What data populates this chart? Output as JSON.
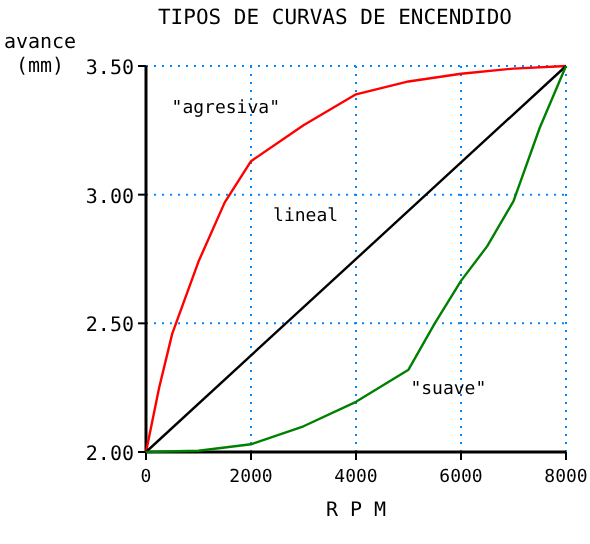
{
  "chart_data": {
    "type": "line",
    "title": "TIPOS DE CURVAS DE ENCENDIDO",
    "xlabel": "R P M",
    "ylabel": "avance (mm)",
    "xlim": [
      0,
      8000
    ],
    "ylim": [
      2,
      3.5
    ],
    "xticks": [
      0,
      2000,
      4000,
      6000,
      8000
    ],
    "yticks": [
      {
        "value": 2,
        "label": "2.00"
      },
      {
        "value": 2.5,
        "label": "2.50"
      },
      {
        "value": 3,
        "label": "3.00"
      },
      {
        "value": 3.5,
        "label": "3.50"
      }
    ],
    "grid": true,
    "marker": "none",
    "line_style": "solid",
    "series": [
      {
        "name": "\"agresiva\"",
        "color": "#ff0000",
        "x": [
          0,
          250,
          500,
          1000,
          1500,
          2000,
          3000,
          4000,
          5000,
          6000,
          7000,
          8000
        ],
        "values": [
          2,
          2.25,
          2.46,
          2.74,
          2.97,
          3.13,
          3.27,
          3.39,
          3.44,
          3.47,
          3.49,
          3.5
        ]
      },
      {
        "name": "lineal",
        "color": "#000000",
        "x": [
          0,
          8000
        ],
        "values": [
          2,
          3.5
        ]
      },
      {
        "name": "\"suave\"",
        "color": "#008000",
        "x": [
          0,
          1000,
          2000,
          3000,
          4000,
          5000,
          5500,
          6000,
          6500,
          7000,
          7500,
          8000
        ],
        "values": [
          2,
          2.005,
          2.03,
          2.1,
          2.195,
          2.32,
          2.5,
          2.665,
          2.8,
          2.975,
          3.26,
          3.5
        ]
      }
    ]
  }
}
